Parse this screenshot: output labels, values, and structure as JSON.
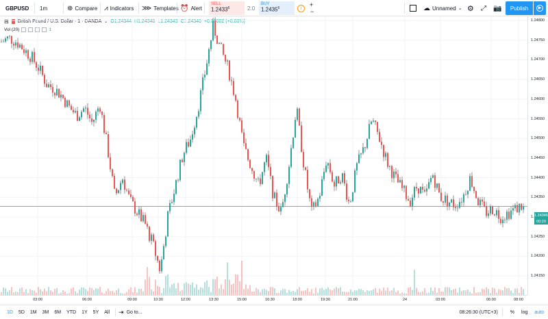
{
  "toolbar": {
    "symbol": "GBPUSD",
    "interval": "1m",
    "compare": "Compare",
    "indicators": "Indicators",
    "templates": "Templates",
    "alert": "Alert",
    "sell_label": "SELL",
    "sell_price": "1.2433",
    "sell_sup": "6",
    "spread": "2.0",
    "buy_label": "BUY",
    "buy_price": "1.2435",
    "buy_sup": "6",
    "layout_name": "Unnamed",
    "publish": "Publish"
  },
  "legend": {
    "title": "British Pound / U.S. Dollar · 1 · OANDA",
    "open": "O1.24344",
    "high": "H1.24346",
    "low": "L1.24343",
    "close": "C1.24346",
    "change": "+0.00002 (+0.00%)",
    "vol_label": "Vol (20)",
    "vol_value": "1"
  },
  "price_axis": {
    "labels": [
      "1.24800",
      "1.24750",
      "1.24700",
      "1.24650",
      "1.24600",
      "1.24550",
      "1.24500",
      "1.24450",
      "1.24400",
      "1.24350",
      "1.24300",
      "1.24250",
      "1.24200",
      "1.24150"
    ],
    "current_price": "1.24346",
    "countdown": "00:29"
  },
  "time_axis": {
    "labels": [
      "03:00",
      "06:00",
      "09:00",
      "10:30",
      "12:00",
      "13:30",
      "15:00",
      "16:30",
      "18:00",
      "19:30",
      "21:00",
      "24",
      "03:00",
      "06:00",
      "08:00"
    ]
  },
  "bottom": {
    "ranges": [
      "1D",
      "5D",
      "1M",
      "3M",
      "6M",
      "YTD",
      "1Y",
      "5Y",
      "All"
    ],
    "goto": "Go to...",
    "clock": "08:26:30 (UTC+3)",
    "percent": "%",
    "log": "log",
    "auto": "auto"
  },
  "colors": {
    "up": "#26a69a",
    "down": "#ef5350",
    "accent": "#2196f3"
  },
  "chart_data": {
    "type": "line",
    "title": "British Pound / U.S. Dollar · 1 · OANDA",
    "ylim": [
      1.2413,
      1.2483
    ],
    "x_labels": [
      "03:00",
      "06:00",
      "09:00",
      "10:30",
      "12:00",
      "13:30",
      "15:00",
      "16:30",
      "18:00",
      "19:30",
      "21:00",
      "24",
      "03:00",
      "06:00",
      "08:00"
    ],
    "close_path": [
      1.2477,
      1.2478,
      1.2477,
      1.2475,
      1.2473,
      1.247,
      1.2466,
      1.2465,
      1.2463,
      1.246,
      1.2458,
      1.246,
      1.2456,
      1.2461,
      1.245,
      1.2437,
      1.2442,
      1.2436,
      1.2433,
      1.243,
      1.2425,
      1.2418,
      1.2432,
      1.244,
      1.2448,
      1.2452,
      1.246,
      1.247,
      1.2481,
      1.2475,
      1.247,
      1.2462,
      1.245,
      1.2445,
      1.244,
      1.2447,
      1.2437,
      1.2433,
      1.2445,
      1.246,
      1.2445,
      1.2433,
      1.2437,
      1.2447,
      1.244,
      1.2443,
      1.2435,
      1.2445,
      1.245,
      1.2457,
      1.2452,
      1.2446,
      1.2442,
      1.2439,
      1.2436,
      1.244,
      1.2437,
      1.2443,
      1.2437,
      1.2436,
      1.2435,
      1.2437,
      1.2442,
      1.2436,
      1.2433,
      1.2434,
      1.2432,
      1.2433,
      1.2434,
      1.2435
    ],
    "last_close": 1.24346
  }
}
